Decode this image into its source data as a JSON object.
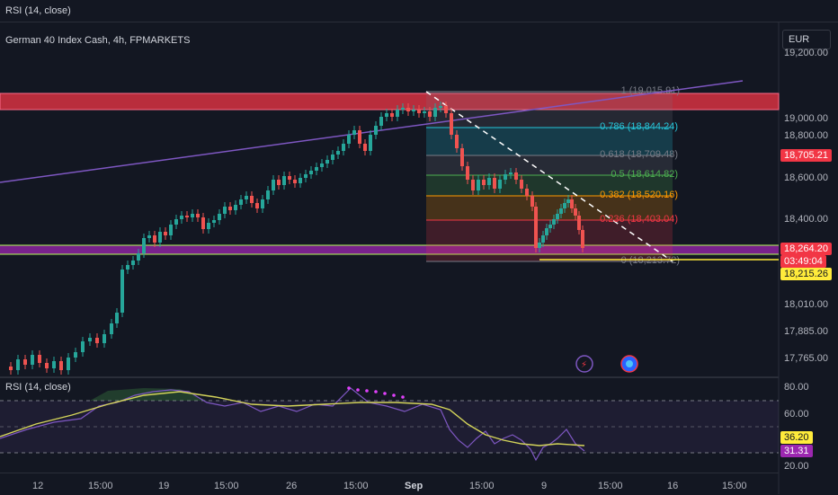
{
  "header": {
    "indicator_label": "RSI (14, close)"
  },
  "chart": {
    "title": "German 40 Index Cash, 4h, FPMARKETS",
    "currency": "EUR"
  },
  "price_axis": {
    "labels": [
      "19,200.00",
      "19,000.00",
      "18,800.00",
      "18,600.00",
      "18,400.00",
      "18,010.00",
      "17,885.00",
      "17,765.00"
    ]
  },
  "price_badges": {
    "resistance": "18,705.21",
    "last": "18,264.20",
    "countdown": "03:49:04",
    "support": "18,215.26"
  },
  "fib_levels": [
    {
      "label": "1 (19,015.91)",
      "color": "#787b86"
    },
    {
      "label": "0.786 (18,844.24)",
      "color": "#26c6da"
    },
    {
      "label": "0.618 (18,709.48)",
      "color": "#787b86"
    },
    {
      "label": "0.5 (18,614.82)",
      "color": "#4caf50"
    },
    {
      "label": "0.382 (18,520.16)",
      "color": "#ff9800"
    },
    {
      "label": "0.236 (18,403.04)",
      "color": "#f23645"
    },
    {
      "label": "0 (18,213.72)",
      "color": "#787b86"
    }
  ],
  "rsi": {
    "label": "RSI (14, close)",
    "axis": [
      "80.00",
      "60.00",
      "20.00"
    ],
    "rsi_value": "36.20",
    "ma_value": "31.31"
  },
  "time_axis": {
    "labels": [
      "12",
      "15:00",
      "19",
      "15:00",
      "26",
      "15:00",
      "Sep",
      "15:00",
      "9",
      "15:00",
      "16",
      "15:00"
    ]
  },
  "colors": {
    "up": "#26a69a",
    "down": "#ef5350",
    "zone": "#f23645",
    "support_zone": "#9c27b0",
    "trend": "#7e57c2"
  }
}
